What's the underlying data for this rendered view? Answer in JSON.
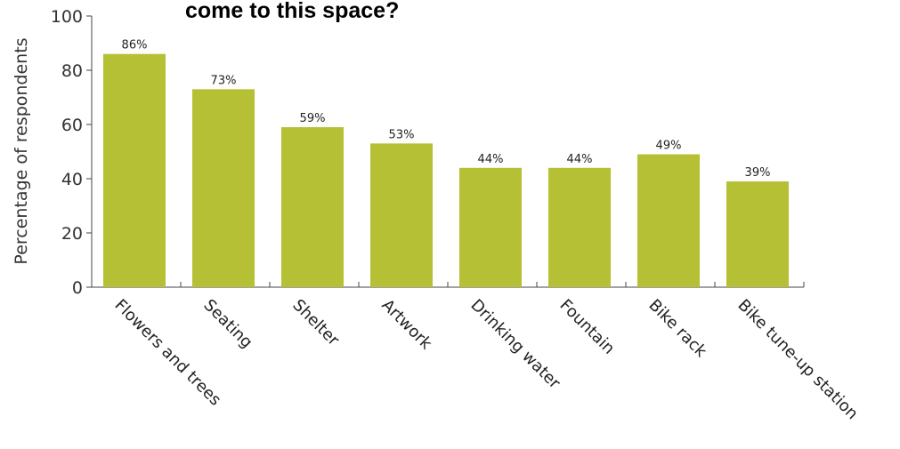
{
  "chart_data": {
    "type": "bar",
    "title": "come to this space?",
    "ylabel": "Percentage of respondents",
    "xlabel": "",
    "ylim": [
      0,
      100
    ],
    "yticks": [
      0,
      20,
      40,
      60,
      80,
      100
    ],
    "categories": [
      "Flowers and trees",
      "Seating",
      "Shelter",
      "Artwork",
      "Drinking water",
      "Fountain",
      "Bike rack",
      "Bike tune-up station"
    ],
    "values": [
      86,
      73,
      59,
      53,
      44,
      44,
      49,
      39
    ],
    "data_labels": [
      "86%",
      "73%",
      "59%",
      "53%",
      "44%",
      "44%",
      "49%",
      "39%"
    ],
    "bar_color": "#b5c034",
    "grid": false,
    "legend": "none"
  }
}
